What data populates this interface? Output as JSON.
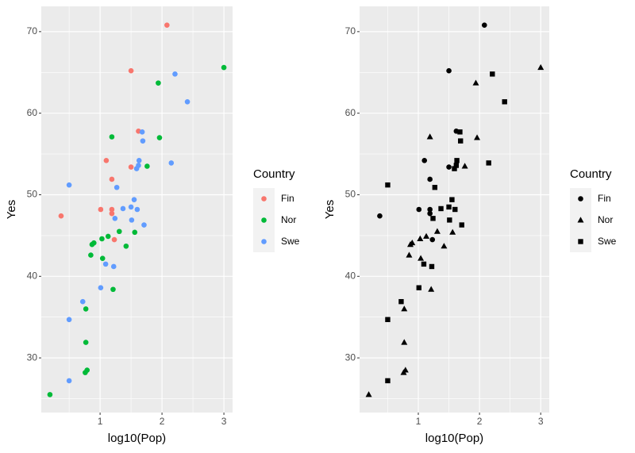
{
  "chart_data": [
    {
      "type": "scatter",
      "xlabel": "log10(Pop)",
      "ylabel": "Yes",
      "legend_title": "Country",
      "xlim": [
        0.05,
        3.14
      ],
      "ylim": [
        23.3,
        73.1
      ],
      "xticks": [
        1,
        2,
        3
      ],
      "yticks": [
        30,
        40,
        50,
        60,
        70
      ],
      "grid": true,
      "legend": "right",
      "series": [
        {
          "name": "Fin",
          "color": "#F8766D",
          "shape": "circle",
          "x": [
            2.08,
            1.5,
            1.62,
            1.1,
            1.5,
            1.19,
            0.37,
            1.01,
            1.19,
            1.19,
            1.23
          ],
          "y": [
            70.8,
            65.2,
            57.8,
            54.2,
            53.4,
            51.9,
            47.4,
            48.2,
            48.2,
            47.7,
            44.5
          ]
        },
        {
          "name": "Nor",
          "color": "#00BA38",
          "shape": "circle",
          "x": [
            3.0,
            1.94,
            1.19,
            1.96,
            1.76,
            0.9,
            0.87,
            1.03,
            1.13,
            1.31,
            1.56,
            1.42,
            0.85,
            1.04,
            1.21,
            0.77,
            0.77,
            0.79,
            0.76,
            0.19
          ],
          "y": [
            65.6,
            63.7,
            57.1,
            57.0,
            53.5,
            44.1,
            43.9,
            44.6,
            44.9,
            45.5,
            45.4,
            43.7,
            42.6,
            42.2,
            38.4,
            36.0,
            31.9,
            28.5,
            28.2,
            25.5
          ]
        },
        {
          "name": "Swe",
          "color": "#619CFF",
          "shape": "circle",
          "x": [
            2.21,
            2.41,
            1.68,
            1.69,
            1.63,
            1.62,
            1.59,
            2.15,
            0.5,
            1.27,
            1.55,
            1.5,
            1.37,
            1.6,
            1.24,
            1.51,
            1.71,
            1.09,
            1.22,
            1.01,
            0.72,
            0.5,
            0.5
          ],
          "y": [
            64.8,
            61.4,
            57.7,
            56.6,
            54.2,
            53.6,
            53.2,
            53.9,
            51.2,
            50.9,
            49.4,
            48.5,
            48.3,
            48.2,
            47.1,
            46.9,
            46.3,
            41.5,
            41.2,
            38.6,
            36.9,
            34.7,
            27.2
          ]
        }
      ]
    },
    {
      "type": "scatter",
      "xlabel": "log10(Pop)",
      "ylabel": "Yes",
      "legend_title": "Country",
      "xlim": [
        0.04,
        3.14
      ],
      "ylim": [
        23.3,
        73.1
      ],
      "xticks": [
        1,
        2,
        3
      ],
      "yticks": [
        30,
        40,
        50,
        60,
        70
      ],
      "grid": true,
      "legend": "right",
      "series": [
        {
          "name": "Fin",
          "color": "#000000",
          "shape": "circle",
          "x": [
            2.08,
            1.5,
            1.62,
            1.1,
            1.5,
            1.19,
            0.37,
            1.01,
            1.19,
            1.19,
            1.23
          ],
          "y": [
            70.8,
            65.2,
            57.8,
            54.2,
            53.4,
            51.9,
            47.4,
            48.2,
            48.2,
            47.7,
            44.5
          ]
        },
        {
          "name": "Nor",
          "color": "#000000",
          "shape": "triangle",
          "x": [
            3.0,
            1.94,
            1.19,
            1.96,
            1.76,
            0.9,
            0.87,
            1.03,
            1.13,
            1.31,
            1.56,
            1.42,
            0.85,
            1.04,
            1.21,
            0.77,
            0.77,
            0.79,
            0.76,
            0.19
          ],
          "y": [
            65.6,
            63.7,
            57.1,
            57.0,
            53.5,
            44.1,
            43.9,
            44.6,
            44.9,
            45.5,
            45.4,
            43.7,
            42.6,
            42.2,
            38.4,
            36.0,
            31.9,
            28.5,
            28.2,
            25.5
          ]
        },
        {
          "name": "Swe",
          "color": "#000000",
          "shape": "square",
          "x": [
            2.21,
            2.41,
            1.68,
            1.69,
            1.63,
            1.62,
            1.59,
            2.15,
            0.5,
            1.27,
            1.55,
            1.5,
            1.37,
            1.6,
            1.24,
            1.51,
            1.71,
            1.09,
            1.22,
            1.01,
            0.72,
            0.5,
            0.5
          ],
          "y": [
            64.8,
            61.4,
            57.7,
            56.6,
            54.2,
            53.6,
            53.2,
            53.9,
            51.2,
            50.9,
            49.4,
            48.5,
            48.3,
            48.2,
            47.1,
            46.9,
            46.3,
            41.5,
            41.2,
            38.6,
            36.9,
            34.7,
            27.2
          ]
        }
      ]
    }
  ]
}
